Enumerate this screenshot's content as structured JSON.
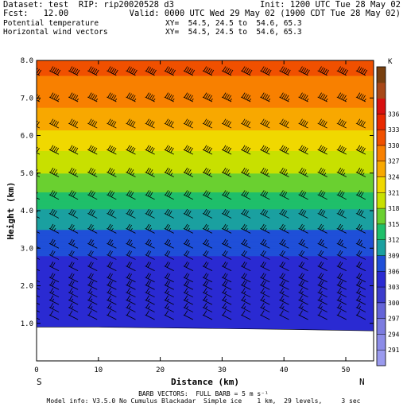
{
  "header": {
    "dataset_line": "Dataset: test  RIP: rip20020528 d3",
    "init_line": "Init: 1200 UTC Tue 28 May 02",
    "fcst_line": "Fcst:   12.00",
    "valid_line": "Valid: 0000 UTC Wed 29 May 02 (1900 CDT Tue 28 May 02)",
    "field1_name": "Potential temperature",
    "field1_xy": "XY=  54.5, 24.5 to  54.6, 65.3",
    "field2_name": "Horizontal wind vectors",
    "field2_xy": "XY=  54.5, 24.5 to  54.6, 65.3"
  },
  "footer": {
    "barb_line": "BARB VECTORS:  FULL BARB = 5 m s⁻¹",
    "model_line": "Model info: V3.5.0 No Cumulus Blackadar  Simple ice    1 km,  29 levels,     3 sec"
  },
  "chart_data": {
    "type": "heatmap",
    "title": "Potential temperature / Horizontal wind vectors",
    "xlabel": "Distance (km)",
    "ylabel": "Height (km)",
    "xlim": [
      0,
      54.5
    ],
    "ylim": [
      0,
      8.0
    ],
    "x_ticks": [
      0,
      10,
      20,
      30,
      40,
      50
    ],
    "y_ticks": [
      "1.0",
      "2.0",
      "3.0",
      "4.0",
      "5.0",
      "6.0",
      "7.0",
      "8.0"
    ],
    "x_endpoint_labels": [
      "S",
      "N"
    ],
    "colorbar": {
      "unit": "K",
      "levels": [
        291,
        294,
        297,
        300,
        303,
        306,
        309,
        312,
        315,
        318,
        321,
        324,
        327,
        330,
        333,
        336
      ],
      "colors": [
        "#9a9aee",
        "#8c8ce8",
        "#7c7ce0",
        "#6464d8",
        "#3c3ccc",
        "#2a2ad2",
        "#1f4fd8",
        "#1aa0a0",
        "#1fbf6a",
        "#6ad030",
        "#c8e000",
        "#f0d800",
        "#f8a800",
        "#f88000",
        "#f05000",
        "#e82800",
        "#d81010",
        "#a84818",
        "#784010"
      ]
    },
    "series": [
      {
        "field": "Potential temperature",
        "points": [
          {
            "height_km": 0.9,
            "theta_k": 303
          },
          {
            "height_km": 2.0,
            "theta_k": 304
          },
          {
            "height_km": 2.8,
            "theta_k": 306
          },
          {
            "height_km": 3.5,
            "theta_k": 309
          },
          {
            "height_km": 4.2,
            "theta_k": 313
          },
          {
            "height_km": 5.0,
            "theta_k": 318
          },
          {
            "height_km": 5.8,
            "theta_k": 322
          },
          {
            "height_km": 6.5,
            "theta_k": 326
          },
          {
            "height_km": 7.2,
            "theta_k": 329
          },
          {
            "height_km": 8.0,
            "theta_k": 331
          }
        ]
      }
    ],
    "barb_levels_km": [
      1.1,
      1.3,
      1.5,
      1.7,
      1.9,
      2.1,
      2.4,
      2.7,
      3.0,
      3.4,
      3.8,
      4.3,
      4.9,
      5.5,
      6.2,
      6.9,
      7.6
    ],
    "barb_speeds_ms": [
      7,
      8,
      9,
      9,
      10,
      10,
      11,
      12,
      13,
      14,
      15,
      17,
      18,
      20,
      22,
      23,
      25
    ],
    "barb_x_km": [
      0.5,
      3.6,
      6.7,
      9.8,
      12.9,
      16,
      19.1,
      22.2,
      25.3,
      28.4,
      31.5,
      34.6,
      37.7,
      40.8,
      43.9,
      47,
      50.1,
      53.2
    ],
    "terrain": [
      [
        0,
        0.9
      ],
      [
        10,
        0.9
      ],
      [
        20,
        0.88
      ],
      [
        30,
        0.86
      ],
      [
        40,
        0.84
      ],
      [
        54.5,
        0.8
      ]
    ]
  }
}
